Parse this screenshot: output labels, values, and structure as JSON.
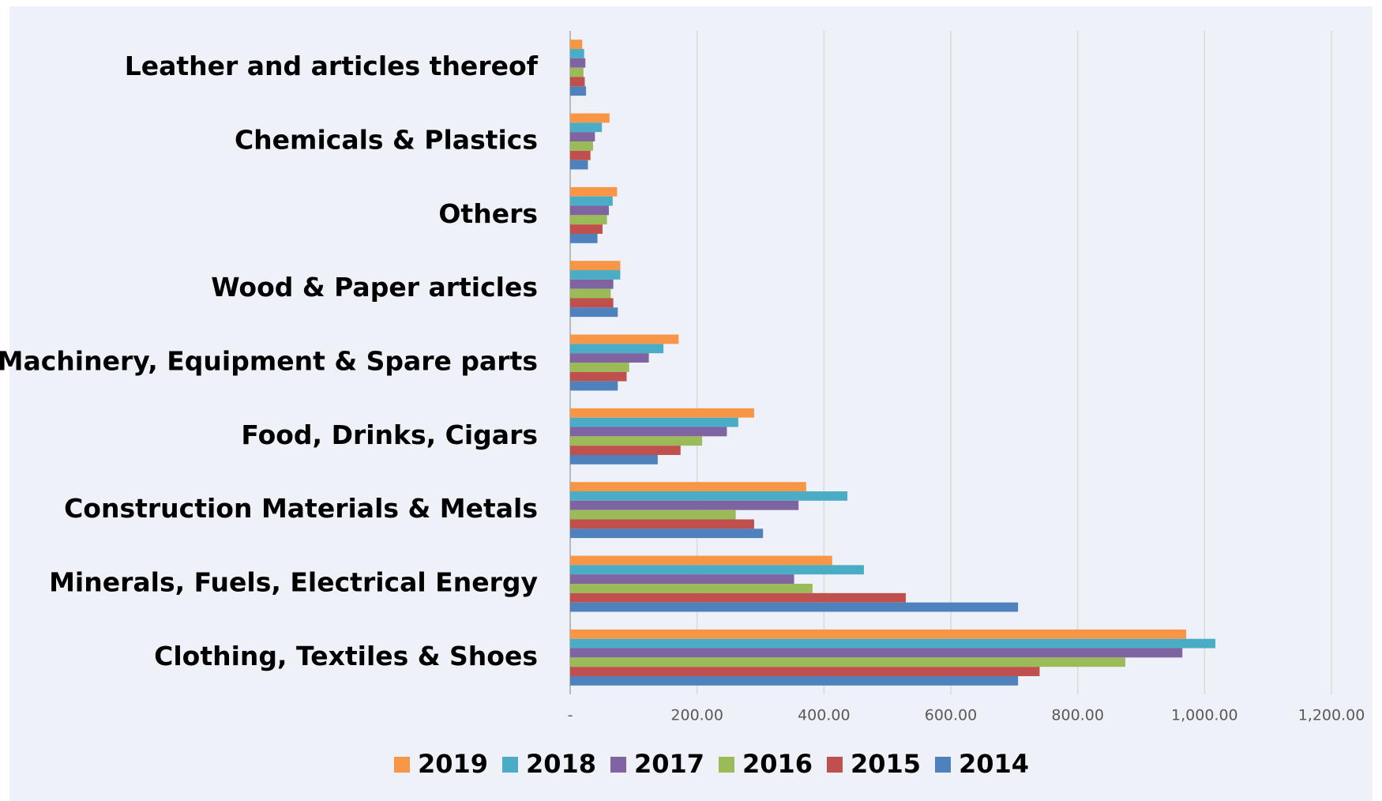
{
  "chart_data": {
    "type": "barh",
    "categories": [
      "Leather and articles thereof",
      "Chemicals & Plastics",
      "Others",
      "Wood & Paper articles",
      "Machinery, Equipment & Spare parts",
      "Food, Drinks, Cigars",
      "Construction Materials & Metals",
      "Minerals, Fuels, Electrical Energy",
      "Clothing, Textiles & Shoes"
    ],
    "series": [
      {
        "name": "2019",
        "color": "#f79646",
        "values": [
          19,
          62,
          74,
          79,
          171,
          290,
          372,
          413,
          971
        ]
      },
      {
        "name": "2018",
        "color": "#4bacc6",
        "values": [
          22,
          50,
          67,
          79,
          147,
          265,
          437,
          463,
          1017
        ]
      },
      {
        "name": "2017",
        "color": "#8064a2",
        "values": [
          24,
          39,
          61,
          68,
          124,
          247,
          360,
          353,
          965
        ]
      },
      {
        "name": "2016",
        "color": "#9bbb59",
        "values": [
          21,
          36,
          58,
          64,
          93,
          208,
          261,
          382,
          875
        ]
      },
      {
        "name": "2015",
        "color": "#c0504d",
        "values": [
          23,
          32,
          51,
          68,
          89,
          174,
          290,
          529,
          740
        ]
      },
      {
        "name": "2014",
        "color": "#4f81bd",
        "values": [
          25,
          28,
          43,
          75,
          75,
          138,
          304,
          706,
          706
        ]
      }
    ],
    "xlim": [
      0,
      1200
    ],
    "xticks": [
      {
        "value": 0,
        "label": "-"
      },
      {
        "value": 200,
        "label": "200.00"
      },
      {
        "value": 400,
        "label": "400.00"
      },
      {
        "value": 600,
        "label": "600.00"
      },
      {
        "value": 800,
        "label": "800.00"
      },
      {
        "value": 1000,
        "label": "1,000.00"
      },
      {
        "value": 1200,
        "label": "1,200.00"
      }
    ],
    "grid": true,
    "legend": "bottom"
  }
}
